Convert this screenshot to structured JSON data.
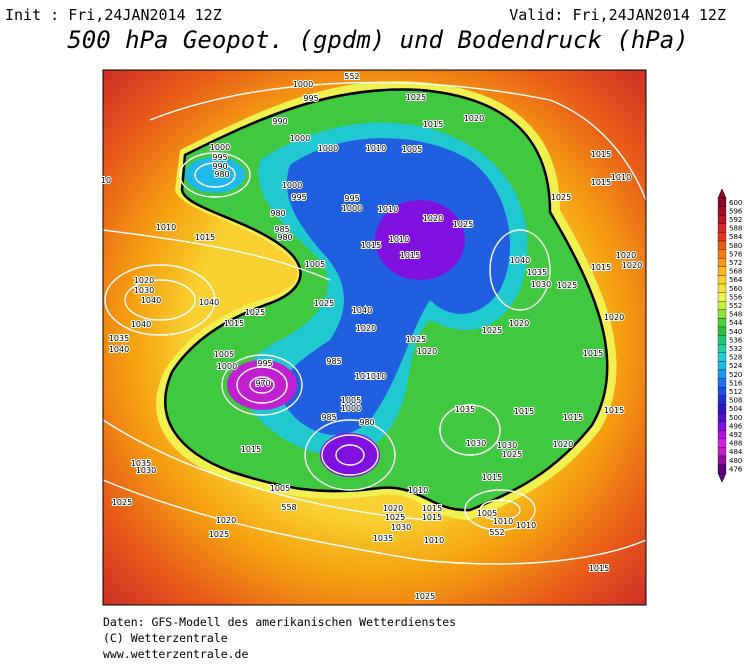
{
  "header": {
    "init": "Init : Fri,24JAN2014 12Z",
    "valid": "Valid: Fri,24JAN2014 12Z",
    "title": "500 hPa Geopot. (gpdm) und Bodendruck (hPa)"
  },
  "colorbar": {
    "labels": [
      600,
      596,
      592,
      588,
      584,
      580,
      576,
      572,
      568,
      564,
      560,
      556,
      552,
      548,
      544,
      540,
      536,
      532,
      528,
      524,
      520,
      516,
      512,
      508,
      504,
      500,
      496,
      492,
      488,
      484,
      480,
      476
    ],
    "colors": [
      "#8b0a2a",
      "#a0102a",
      "#b8182a",
      "#d02828",
      "#e03a20",
      "#e85a1a",
      "#f07a10",
      "#f59a10",
      "#f8b820",
      "#fad030",
      "#f8e040",
      "#f0f050",
      "#c8f040",
      "#90e040",
      "#50d040",
      "#30c040",
      "#20c870",
      "#20d0a0",
      "#20d0d0",
      "#20b8e8",
      "#2098f0",
      "#2070f0",
      "#2050e0",
      "#2030d0",
      "#3018c0",
      "#5010d0",
      "#8010e0",
      "#b010e0",
      "#d020e0",
      "#c020c0",
      "#9010a0",
      "#600080"
    ]
  },
  "map": {
    "labels": [
      "552",
      "1000",
      "995",
      "990",
      "1000",
      "1000",
      "1010",
      "1005",
      "1025",
      "1015",
      "1020",
      "1015",
      "1015",
      "1010",
      "1000",
      "995",
      "990",
      "980",
      "1000",
      "995",
      "980",
      "985",
      "980",
      "995",
      "1000",
      "1010",
      "1020",
      "1025",
      "1015",
      "1010",
      "1015",
      "1040",
      "1035",
      "1030",
      "1025",
      "1025",
      "1020",
      "1015",
      "1020",
      "1010",
      "1015",
      "1020",
      "1030",
      "1040",
      "1040",
      "1040",
      "1035",
      "1040",
      "1015",
      "1025",
      "1005",
      "1025",
      "1040",
      "1020",
      "1025",
      "1020",
      "1025",
      "1020",
      "1015",
      "1005",
      "1000",
      "970",
      "995",
      "985",
      "1015",
      "1010",
      "1005",
      "1000",
      "985",
      "980",
      "1020",
      "1035",
      "1030",
      "1015",
      "1030",
      "1015",
      "1015",
      "1020",
      "1025",
      "1015",
      "1005",
      "1010",
      "1010",
      "1015",
      "1015",
      "1005",
      "1035",
      "1030",
      "1025",
      "1020",
      "1025",
      "1020",
      "1025",
      "1030",
      "1035",
      "1015",
      "1010",
      "1010",
      "1015",
      "1025",
      "558",
      "552",
      "10"
    ]
  },
  "footer": {
    "lines": [
      "Daten: GFS-Modell des amerikanischen Wetterdienstes",
      "(C) Wetterzentrale",
      "www.wetterzentrale.de"
    ]
  }
}
